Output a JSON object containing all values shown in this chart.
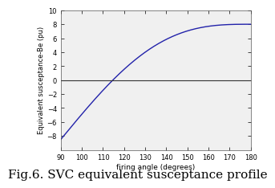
{
  "title": "",
  "xlabel": "firing angle (degrees)",
  "ylabel": "Equivalent susceptance-Be (pu)",
  "caption": "Fig.6. SVC equivalent susceptance profile",
  "x_min": 90,
  "x_max": 180,
  "x_ticks": [
    90,
    100,
    110,
    120,
    130,
    140,
    150,
    160,
    170,
    180
  ],
  "y_min": -10,
  "y_max": 10,
  "y_ticks": [
    -8,
    -6,
    -4,
    -2,
    0,
    2,
    4,
    6,
    8,
    10
  ],
  "line_color": "#2222aa",
  "hline_color": "#333333",
  "hline_y": 0,
  "bg_color": "#ffffff",
  "axes_bg_color": "#f0f0f0",
  "xlabel_fontsize": 6.5,
  "ylabel_fontsize": 6,
  "tick_fontsize": 6,
  "caption_fontsize": 11,
  "Bc": 8.0,
  "scale": 16.5
}
